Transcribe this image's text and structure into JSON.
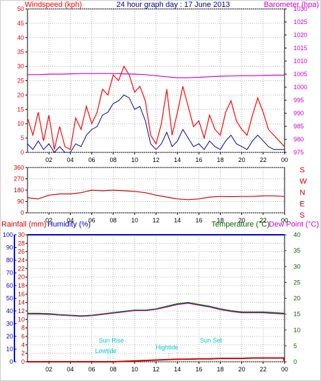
{
  "colors": {
    "wind": "#ff0000",
    "gust": "#ff0000",
    "avgwind": "#000099",
    "baro": "#cc00cc",
    "dir": "#cc0000",
    "rain": "#cc0000",
    "humidity": "#0000cc",
    "temp": "#006600",
    "dew": "#cc00cc",
    "sun": "#00cccc",
    "grid": "#b0b0b0"
  },
  "header": {
    "windspeed_label": "Windspeed (kph)",
    "title": "24 hour graph day : 17 June 2013",
    "barometer_label": "Barometer (hpa)"
  },
  "bottom_header": {
    "rain_label": "Rainfall (mm)",
    "humidity_label": "Humidity (%)",
    "temperature_label": "Temperature (°C)",
    "dewpoint_label": "Dew Point (°C)"
  },
  "annotations": {
    "sunrise": "Sun Rise",
    "lowtide": "Lowtide",
    "hightide": "Hightide",
    "sunset": "Sun Set"
  },
  "chart_data": [
    {
      "type": "line",
      "panel": "wind_baro",
      "x_ticks": [
        "02",
        "04",
        "06",
        "08",
        "10",
        "12",
        "14",
        "16",
        "18",
        "20",
        "22",
        "00"
      ],
      "ylim_left": [
        0,
        50
      ],
      "yticks_left": [
        0,
        5,
        10,
        15,
        20,
        25,
        30,
        35,
        40,
        45,
        50
      ],
      "ylim_right": [
        975,
        1030
      ],
      "yticks_right": [
        975,
        980,
        985,
        990,
        995,
        1000,
        1005,
        1010,
        1015,
        1020,
        1025,
        1030
      ],
      "series": [
        {
          "name": "Windspeed (kph)",
          "hours": [
            0.0,
            0.5,
            1.0,
            1.5,
            2.0,
            2.5,
            3.0,
            3.5,
            4.0,
            4.5,
            5.0,
            5.5,
            6.0,
            6.5,
            7.0,
            7.5,
            8.0,
            8.5,
            9.0,
            9.5,
            10.0,
            10.5,
            11.0,
            11.5,
            12.0,
            12.5,
            13.0,
            13.5,
            14.0,
            14.5,
            15.0,
            15.5,
            16.0,
            16.5,
            17.0,
            17.5,
            18.0,
            18.5,
            19.0,
            19.5,
            20.0,
            20.5,
            21.0,
            21.5,
            22.0,
            22.5,
            23.0,
            23.5,
            24.0
          ],
          "values": [
            12,
            6,
            14,
            4,
            13,
            1,
            9,
            2,
            1,
            12,
            8,
            16,
            10,
            14,
            22,
            20,
            27,
            25,
            30,
            27,
            21,
            23,
            18,
            6,
            3,
            10,
            22,
            6,
            14,
            23,
            16,
            9,
            11,
            5,
            13,
            8,
            6,
            14,
            18,
            11,
            8,
            6,
            13,
            19,
            14,
            8,
            6,
            4,
            2
          ]
        },
        {
          "name": "Average wind",
          "hours": [
            0.0,
            0.5,
            1.0,
            1.5,
            2.0,
            2.5,
            3.0,
            3.5,
            4.0,
            4.5,
            5.0,
            5.5,
            6.0,
            6.5,
            7.0,
            7.5,
            8.0,
            8.5,
            9.0,
            9.5,
            10.0,
            10.5,
            11.0,
            11.5,
            12.0,
            12.5,
            13.0,
            13.5,
            14.0,
            14.5,
            15.0,
            15.5,
            16.0,
            16.5,
            17.0,
            17.5,
            18.0,
            18.5,
            19.0,
            19.5,
            20.0,
            20.5,
            21.0,
            21.5,
            22.0,
            22.5,
            23.0,
            23.5,
            24.0
          ],
          "values": [
            3,
            1,
            4,
            1,
            3,
            0,
            2,
            0,
            0,
            3,
            2,
            6,
            8,
            9,
            13,
            14,
            17,
            18,
            20,
            19,
            15,
            16,
            11,
            3,
            1,
            3,
            7,
            2,
            4,
            8,
            5,
            2,
            3,
            1,
            4,
            2,
            1,
            4,
            6,
            3,
            2,
            1,
            4,
            6,
            4,
            2,
            1,
            1,
            1
          ]
        },
        {
          "name": "Barometer (hpa)",
          "hours": [
            0,
            1,
            2,
            3,
            4,
            5,
            6,
            7,
            8,
            9,
            10,
            11,
            12,
            13,
            14,
            15,
            16,
            17,
            18,
            19,
            20,
            21,
            22,
            23,
            24
          ],
          "values": [
            1004.8,
            1004.8,
            1005.0,
            1005.0,
            1005.1,
            1005.2,
            1005.2,
            1005.2,
            1005.2,
            1005.1,
            1005.0,
            1004.8,
            1004.4,
            1004.0,
            1003.6,
            1003.6,
            1003.8,
            1004.0,
            1004.2,
            1004.3,
            1004.4,
            1004.4,
            1004.5,
            1004.6,
            1004.6
          ]
        }
      ]
    },
    {
      "type": "line",
      "panel": "wind_direction",
      "ylim": [
        0,
        360
      ],
      "yticks": [
        0,
        90,
        180,
        270,
        360
      ],
      "direction_labels": [
        "S",
        "E",
        "N",
        "W",
        "S"
      ],
      "series": [
        {
          "name": "Wind direction",
          "hours": [
            0,
            1,
            2,
            3,
            4,
            5,
            6,
            7,
            8,
            9,
            10,
            11,
            12,
            13,
            14,
            15,
            16,
            17,
            18,
            19,
            20,
            21,
            22,
            23,
            24
          ],
          "values": [
            120,
            110,
            140,
            150,
            150,
            160,
            180,
            175,
            180,
            175,
            170,
            160,
            140,
            125,
            110,
            105,
            110,
            125,
            130,
            128,
            130,
            130,
            135,
            135,
            130
          ]
        }
      ]
    },
    {
      "type": "line",
      "panel": "temp_humidity_rain",
      "ylim_rain": [
        0,
        30
      ],
      "yticks_rain": [
        0,
        2,
        4,
        6,
        8,
        10,
        12,
        14,
        16,
        18,
        20,
        22,
        24,
        26,
        28,
        30
      ],
      "ylim_humidity": [
        0,
        100
      ],
      "yticks_humidity": [
        0,
        10,
        20,
        30,
        40,
        50,
        60,
        70,
        80,
        90,
        100
      ],
      "ylim_temp": [
        0,
        40
      ],
      "yticks_temp": [
        0,
        5,
        10,
        15,
        20,
        25,
        30,
        35,
        40
      ],
      "series": [
        {
          "name": "Temperature (°C)",
          "hours": [
            0,
            1,
            2,
            3,
            4,
            5,
            6,
            7,
            8,
            9,
            10,
            11,
            12,
            13,
            14,
            15,
            16,
            17,
            18,
            19,
            20,
            21,
            22,
            23,
            24
          ],
          "values": [
            15.2,
            15.2,
            15.1,
            14.8,
            14.6,
            14.4,
            14.6,
            15.0,
            15.4,
            15.8,
            16.2,
            16.2,
            16.6,
            17.4,
            18.2,
            18.6,
            18.0,
            17.4,
            16.6,
            16.0,
            15.6,
            15.6,
            15.6,
            15.4,
            15.2
          ]
        },
        {
          "name": "Dew Point (°C)",
          "hours": [
            0,
            1,
            2,
            3,
            4,
            5,
            6,
            7,
            8,
            9,
            10,
            11,
            12,
            13,
            14,
            15,
            16,
            17,
            18,
            19,
            20,
            21,
            22,
            23,
            24
          ],
          "values": [
            15.0,
            15.0,
            14.9,
            14.7,
            14.5,
            14.3,
            14.5,
            14.9,
            15.3,
            15.7,
            16.1,
            16.1,
            16.5,
            17.2,
            18.0,
            18.4,
            17.8,
            17.2,
            16.4,
            15.8,
            15.4,
            15.4,
            15.4,
            15.2,
            15.0
          ]
        },
        {
          "name": "Humidity (%)",
          "hours": [
            0,
            24
          ],
          "values": [
            100,
            100
          ]
        },
        {
          "name": "Rainfall (mm)",
          "hours": [
            0,
            8,
            9,
            10,
            11,
            12,
            13,
            14,
            15,
            16,
            17,
            18,
            19,
            20,
            21,
            22,
            23,
            23.9,
            24
          ],
          "values": [
            0,
            0,
            0.1,
            0.2,
            0.3,
            0.4,
            0.5,
            0.6,
            0.6,
            0.7,
            0.7,
            0.8,
            0.8,
            0.8,
            0.9,
            0.9,
            0.9,
            0.9,
            0
          ]
        }
      ]
    }
  ]
}
